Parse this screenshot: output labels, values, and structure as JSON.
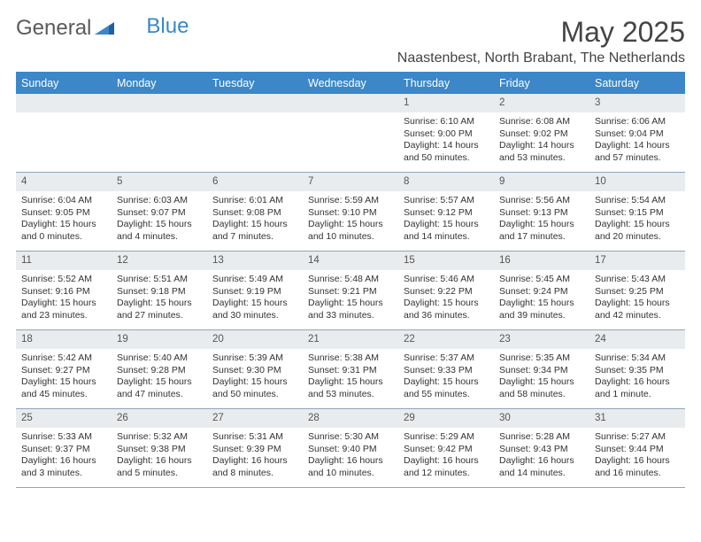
{
  "brand": {
    "part1": "General",
    "part2": "Blue"
  },
  "title": "May 2025",
  "location": "Naastenbest, North Brabant, The Netherlands",
  "colors": {
    "header_bg": "#3b87c8",
    "header_text": "#ffffff",
    "daynum_bg": "#e9ecef",
    "border": "#8aa6bd"
  },
  "weekdays": [
    "Sunday",
    "Monday",
    "Tuesday",
    "Wednesday",
    "Thursday",
    "Friday",
    "Saturday"
  ],
  "weeks": [
    [
      null,
      null,
      null,
      null,
      {
        "n": "1",
        "sr": "Sunrise: 6:10 AM",
        "ss": "Sunset: 9:00 PM",
        "dl1": "Daylight: 14 hours",
        "dl2": "and 50 minutes."
      },
      {
        "n": "2",
        "sr": "Sunrise: 6:08 AM",
        "ss": "Sunset: 9:02 PM",
        "dl1": "Daylight: 14 hours",
        "dl2": "and 53 minutes."
      },
      {
        "n": "3",
        "sr": "Sunrise: 6:06 AM",
        "ss": "Sunset: 9:04 PM",
        "dl1": "Daylight: 14 hours",
        "dl2": "and 57 minutes."
      }
    ],
    [
      {
        "n": "4",
        "sr": "Sunrise: 6:04 AM",
        "ss": "Sunset: 9:05 PM",
        "dl1": "Daylight: 15 hours",
        "dl2": "and 0 minutes."
      },
      {
        "n": "5",
        "sr": "Sunrise: 6:03 AM",
        "ss": "Sunset: 9:07 PM",
        "dl1": "Daylight: 15 hours",
        "dl2": "and 4 minutes."
      },
      {
        "n": "6",
        "sr": "Sunrise: 6:01 AM",
        "ss": "Sunset: 9:08 PM",
        "dl1": "Daylight: 15 hours",
        "dl2": "and 7 minutes."
      },
      {
        "n": "7",
        "sr": "Sunrise: 5:59 AM",
        "ss": "Sunset: 9:10 PM",
        "dl1": "Daylight: 15 hours",
        "dl2": "and 10 minutes."
      },
      {
        "n": "8",
        "sr": "Sunrise: 5:57 AM",
        "ss": "Sunset: 9:12 PM",
        "dl1": "Daylight: 15 hours",
        "dl2": "and 14 minutes."
      },
      {
        "n": "9",
        "sr": "Sunrise: 5:56 AM",
        "ss": "Sunset: 9:13 PM",
        "dl1": "Daylight: 15 hours",
        "dl2": "and 17 minutes."
      },
      {
        "n": "10",
        "sr": "Sunrise: 5:54 AM",
        "ss": "Sunset: 9:15 PM",
        "dl1": "Daylight: 15 hours",
        "dl2": "and 20 minutes."
      }
    ],
    [
      {
        "n": "11",
        "sr": "Sunrise: 5:52 AM",
        "ss": "Sunset: 9:16 PM",
        "dl1": "Daylight: 15 hours",
        "dl2": "and 23 minutes."
      },
      {
        "n": "12",
        "sr": "Sunrise: 5:51 AM",
        "ss": "Sunset: 9:18 PM",
        "dl1": "Daylight: 15 hours",
        "dl2": "and 27 minutes."
      },
      {
        "n": "13",
        "sr": "Sunrise: 5:49 AM",
        "ss": "Sunset: 9:19 PM",
        "dl1": "Daylight: 15 hours",
        "dl2": "and 30 minutes."
      },
      {
        "n": "14",
        "sr": "Sunrise: 5:48 AM",
        "ss": "Sunset: 9:21 PM",
        "dl1": "Daylight: 15 hours",
        "dl2": "and 33 minutes."
      },
      {
        "n": "15",
        "sr": "Sunrise: 5:46 AM",
        "ss": "Sunset: 9:22 PM",
        "dl1": "Daylight: 15 hours",
        "dl2": "and 36 minutes."
      },
      {
        "n": "16",
        "sr": "Sunrise: 5:45 AM",
        "ss": "Sunset: 9:24 PM",
        "dl1": "Daylight: 15 hours",
        "dl2": "and 39 minutes."
      },
      {
        "n": "17",
        "sr": "Sunrise: 5:43 AM",
        "ss": "Sunset: 9:25 PM",
        "dl1": "Daylight: 15 hours",
        "dl2": "and 42 minutes."
      }
    ],
    [
      {
        "n": "18",
        "sr": "Sunrise: 5:42 AM",
        "ss": "Sunset: 9:27 PM",
        "dl1": "Daylight: 15 hours",
        "dl2": "and 45 minutes."
      },
      {
        "n": "19",
        "sr": "Sunrise: 5:40 AM",
        "ss": "Sunset: 9:28 PM",
        "dl1": "Daylight: 15 hours",
        "dl2": "and 47 minutes."
      },
      {
        "n": "20",
        "sr": "Sunrise: 5:39 AM",
        "ss": "Sunset: 9:30 PM",
        "dl1": "Daylight: 15 hours",
        "dl2": "and 50 minutes."
      },
      {
        "n": "21",
        "sr": "Sunrise: 5:38 AM",
        "ss": "Sunset: 9:31 PM",
        "dl1": "Daylight: 15 hours",
        "dl2": "and 53 minutes."
      },
      {
        "n": "22",
        "sr": "Sunrise: 5:37 AM",
        "ss": "Sunset: 9:33 PM",
        "dl1": "Daylight: 15 hours",
        "dl2": "and 55 minutes."
      },
      {
        "n": "23",
        "sr": "Sunrise: 5:35 AM",
        "ss": "Sunset: 9:34 PM",
        "dl1": "Daylight: 15 hours",
        "dl2": "and 58 minutes."
      },
      {
        "n": "24",
        "sr": "Sunrise: 5:34 AM",
        "ss": "Sunset: 9:35 PM",
        "dl1": "Daylight: 16 hours",
        "dl2": "and 1 minute."
      }
    ],
    [
      {
        "n": "25",
        "sr": "Sunrise: 5:33 AM",
        "ss": "Sunset: 9:37 PM",
        "dl1": "Daylight: 16 hours",
        "dl2": "and 3 minutes."
      },
      {
        "n": "26",
        "sr": "Sunrise: 5:32 AM",
        "ss": "Sunset: 9:38 PM",
        "dl1": "Daylight: 16 hours",
        "dl2": "and 5 minutes."
      },
      {
        "n": "27",
        "sr": "Sunrise: 5:31 AM",
        "ss": "Sunset: 9:39 PM",
        "dl1": "Daylight: 16 hours",
        "dl2": "and 8 minutes."
      },
      {
        "n": "28",
        "sr": "Sunrise: 5:30 AM",
        "ss": "Sunset: 9:40 PM",
        "dl1": "Daylight: 16 hours",
        "dl2": "and 10 minutes."
      },
      {
        "n": "29",
        "sr": "Sunrise: 5:29 AM",
        "ss": "Sunset: 9:42 PM",
        "dl1": "Daylight: 16 hours",
        "dl2": "and 12 minutes."
      },
      {
        "n": "30",
        "sr": "Sunrise: 5:28 AM",
        "ss": "Sunset: 9:43 PM",
        "dl1": "Daylight: 16 hours",
        "dl2": "and 14 minutes."
      },
      {
        "n": "31",
        "sr": "Sunrise: 5:27 AM",
        "ss": "Sunset: 9:44 PM",
        "dl1": "Daylight: 16 hours",
        "dl2": "and 16 minutes."
      }
    ]
  ]
}
